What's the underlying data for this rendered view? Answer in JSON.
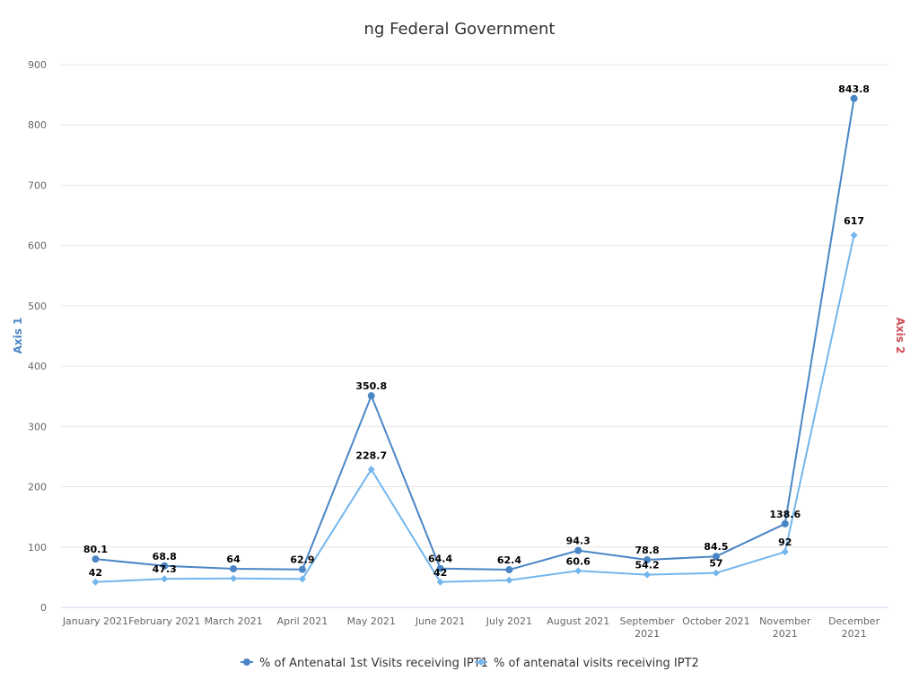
{
  "chart_data": {
    "type": "line",
    "title": "ng Federal Government",
    "y_axis_left_title": "Axis 1",
    "y_axis_right_title": "Axis 2",
    "y_axis_left_color": "#4a86c5",
    "y_axis_right_color": "#d0505a",
    "ylim": [
      0,
      900
    ],
    "yticks": [
      0,
      100,
      200,
      300,
      400,
      500,
      600,
      700,
      800,
      900
    ],
    "grid": true,
    "legend_position": "bottom",
    "categories": [
      [
        "January 2021"
      ],
      [
        "February 2021"
      ],
      [
        "March 2021"
      ],
      [
        "April 2021"
      ],
      [
        "May 2021"
      ],
      [
        "June 2021"
      ],
      [
        "July 2021"
      ],
      [
        "August 2021"
      ],
      [
        "September",
        "2021"
      ],
      [
        "October 2021"
      ],
      [
        "November",
        "2021"
      ],
      [
        "December",
        "2021"
      ]
    ],
    "series": [
      {
        "name": "% of Antenatal 1st Visits receiving IPT1",
        "color": "#4a86c5",
        "marker": "circle",
        "values": [
          80.1,
          68.8,
          64,
          62.9,
          350.8,
          64.4,
          62.4,
          94.3,
          78.8,
          84.5,
          138.6,
          843.8
        ],
        "labels": [
          "80.1",
          "68.8",
          "64",
          "62.9",
          "350.8",
          "64.4",
          "62.4",
          "94.3",
          "78.8",
          "84.5",
          "138.6",
          "843.8"
        ]
      },
      {
        "name": "% of antenatal visits receiving IPT2",
        "color": "#72b6ee",
        "marker": "diamond",
        "values": [
          42,
          47.3,
          48,
          47,
          228.7,
          42,
          45,
          60.6,
          54.2,
          57,
          92,
          617
        ],
        "labels": [
          "42",
          "47.3",
          "",
          "",
          "228.7",
          "42",
          "",
          "60.6",
          "54.2",
          "57",
          "92",
          "617"
        ]
      }
    ]
  }
}
